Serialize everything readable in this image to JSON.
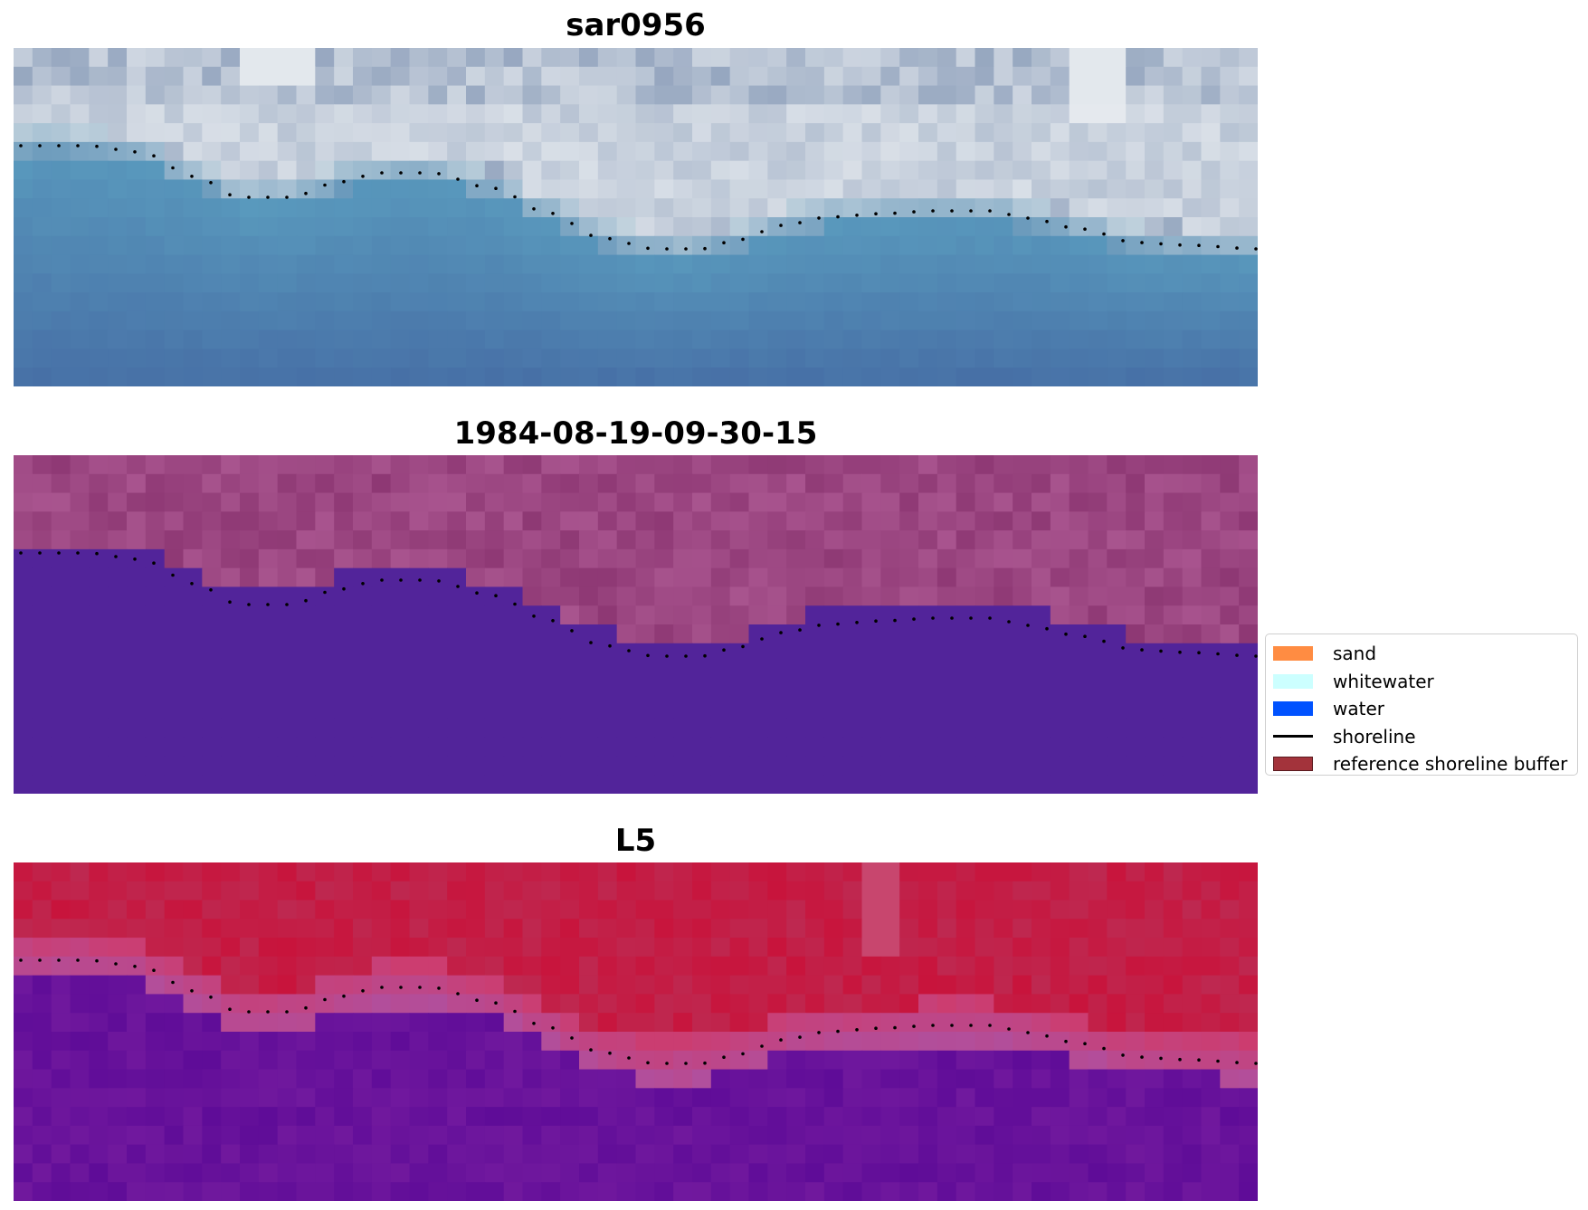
{
  "panels": [
    {
      "title": "sar0956",
      "type": "rgb-image"
    },
    {
      "title": "1984-08-19-09-30-15",
      "type": "classification"
    },
    {
      "title": "L5",
      "type": "mndwi-image"
    }
  ],
  "legend": {
    "items": [
      {
        "label": "sand",
        "color": "#FF8C42",
        "kind": "patch"
      },
      {
        "label": "whitewater",
        "color": "#CCFFFF",
        "kind": "patch"
      },
      {
        "label": "water",
        "color": "#0052FF",
        "kind": "patch"
      },
      {
        "label": "shoreline",
        "color": "#000000",
        "kind": "line"
      },
      {
        "label": "reference shoreline buffer",
        "color": "#A3333B",
        "kind": "patch"
      }
    ]
  },
  "colors": {
    "rgb_sky_light": "#E6ECF0",
    "rgb_water": "#4F8FB8",
    "class_background": "#A0508A",
    "class_water": "#52249A",
    "index_land": "#C01840",
    "index_water": "#64109A",
    "shoreline_dots": "#000000"
  }
}
